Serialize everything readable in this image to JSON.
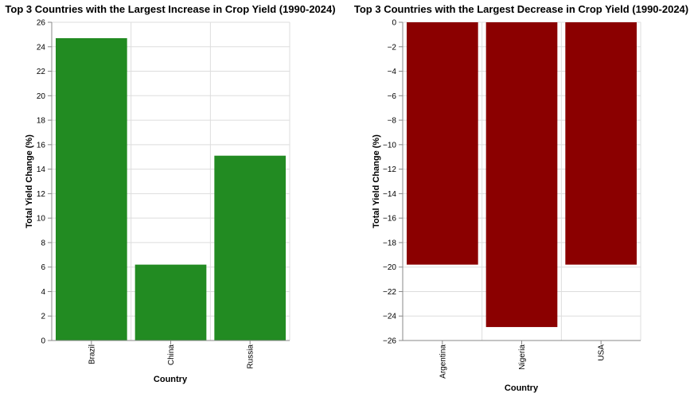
{
  "chart_data": [
    {
      "type": "bar",
      "title": "Top 3 Countries with the Largest Increase in Crop Yield (1990-2024)",
      "xlabel": "Country",
      "ylabel": "Total Yield Change (%)",
      "categories": [
        "Brazil",
        "China",
        "Russia"
      ],
      "values": [
        24.7,
        6.2,
        15.1
      ],
      "ylim": [
        0,
        26
      ],
      "yticks": [
        0,
        2,
        4,
        6,
        8,
        10,
        12,
        14,
        16,
        18,
        20,
        22,
        24,
        26
      ],
      "ytick_labels": [
        "0",
        "2",
        "4",
        "6",
        "8",
        "10",
        "12",
        "14",
        "16",
        "18",
        "20",
        "22",
        "24",
        "26"
      ],
      "bar_color": "#228b22",
      "grid": true
    },
    {
      "type": "bar",
      "title": "Top 3 Countries with the Largest Decrease in Crop Yield (1990-2024)",
      "xlabel": "Country",
      "ylabel": "Total Yield Change (%)",
      "categories": [
        "Argentina",
        "Nigeria",
        "USA"
      ],
      "values": [
        -19.8,
        -24.9,
        -19.8
      ],
      "ylim": [
        -26,
        0
      ],
      "yticks": [
        0,
        -2,
        -4,
        -6,
        -8,
        -10,
        -12,
        -14,
        -16,
        -18,
        -20,
        -22,
        -24,
        -26
      ],
      "ytick_labels": [
        "0",
        "−2",
        "−4",
        "−6",
        "−8",
        "−10",
        "−12",
        "−14",
        "−16",
        "−18",
        "−20",
        "−22",
        "−24",
        "−26"
      ],
      "bar_color": "#8b0000",
      "grid": true
    }
  ]
}
